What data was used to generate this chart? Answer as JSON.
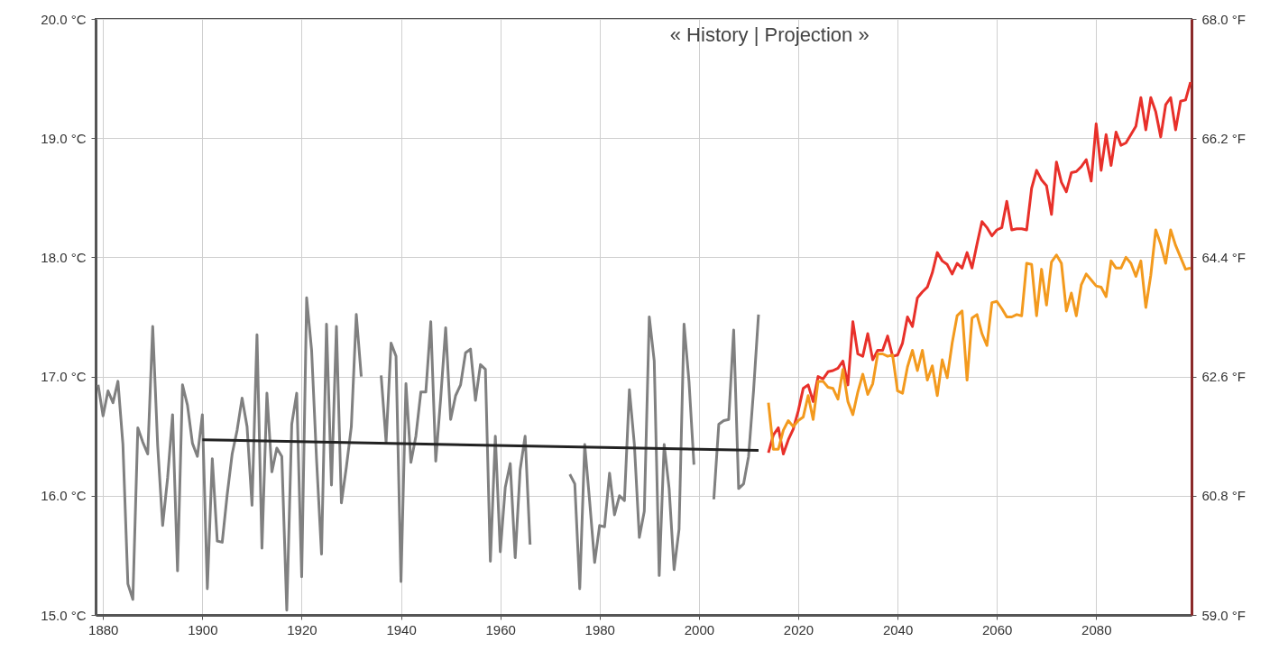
{
  "chart_data": {
    "type": "line",
    "annotations": [
      "« History | Projection »"
    ],
    "xlim": [
      1878.5,
      2099.2
    ],
    "xticks": [
      1880,
      1900,
      1920,
      1940,
      1960,
      1980,
      2000,
      2020,
      2040,
      2060,
      2080
    ],
    "ylim": [
      15,
      20
    ],
    "yticks": [
      {
        "value": 15,
        "label": "15.0 °C"
      },
      {
        "value": 16,
        "label": "16.0 °C"
      },
      {
        "value": 17,
        "label": "17.0 °C"
      },
      {
        "value": 18,
        "label": "18.0 °C"
      },
      {
        "value": 19,
        "label": "19.0 °C"
      },
      {
        "value": 20,
        "label": "20.0 °C"
      }
    ],
    "y2lim": [
      59,
      68
    ],
    "y2ticks": [
      {
        "value": 59,
        "label": "59.0 °F"
      },
      {
        "value": 60.8,
        "label": "60.8 °F"
      },
      {
        "value": 62.6,
        "label": "62.6 °F"
      },
      {
        "value": 64.4,
        "label": "64.4 °F"
      },
      {
        "value": 66.2,
        "label": "66.2 °F"
      },
      {
        "value": 68,
        "label": "68.0 °F"
      }
    ],
    "grid": true,
    "line_style": "solid",
    "series": [
      {
        "color": "#808080",
        "x": [
          1879,
          1880,
          1881,
          1882,
          1883,
          1884,
          1885,
          1886,
          1887,
          1888,
          1889,
          1890,
          1891,
          1892,
          1893,
          1894,
          1895,
          1896,
          1897,
          1898,
          1899,
          1900,
          1901,
          1902,
          1903,
          1904,
          1905,
          1906,
          1907,
          1908,
          1909,
          1910,
          1911,
          1912,
          1913,
          1914,
          1915,
          1916,
          1917,
          1918,
          1919,
          1920,
          1921,
          1922,
          1923,
          1924,
          1925,
          1926,
          1927,
          1928,
          1929,
          1930,
          1931,
          1932,
          1933,
          1934,
          1935,
          1936,
          1937,
          1938,
          1939,
          1940,
          1941,
          1942,
          1943,
          1944,
          1945,
          1946,
          1947,
          1948,
          1949,
          1950,
          1951,
          1952,
          1953,
          1954,
          1955,
          1956,
          1957,
          1958,
          1959,
          1960,
          1961,
          1962,
          1963,
          1964,
          1965,
          1966,
          1967,
          1968,
          1969,
          1970,
          1971,
          1972,
          1973,
          1974,
          1975,
          1976,
          1977,
          1978,
          1979,
          1980,
          1981,
          1982,
          1983,
          1984,
          1985,
          1986,
          1987,
          1988,
          1989,
          1990,
          1991,
          1992,
          1993,
          1994,
          1995,
          1996,
          1997,
          1998,
          1999,
          2000,
          2001,
          2002,
          2003,
          2004,
          2005,
          2006,
          2007,
          2008,
          2009,
          2010,
          2011,
          2012
        ],
        "values": [
          16.93,
          16.67,
          16.88,
          16.78,
          16.96,
          16.43,
          15.26,
          15.13,
          16.57,
          16.45,
          16.35,
          17.42,
          16.42,
          15.75,
          16.15,
          16.68,
          15.37,
          16.93,
          16.76,
          16.44,
          16.33,
          16.68,
          15.22,
          16.31,
          15.62,
          15.61,
          16.01,
          16.35,
          16.55,
          16.82,
          16.58,
          15.92,
          17.35,
          15.56,
          16.86,
          16.2,
          16.4,
          16.33,
          15.04,
          16.6,
          16.86,
          15.32,
          17.66,
          17.22,
          16.3,
          15.51,
          17.44,
          16.09,
          17.42,
          15.94,
          16.24,
          16.58,
          17.52,
          17.0,
          null,
          null,
          null,
          17.01,
          16.45,
          17.28,
          17.17,
          15.28,
          16.94,
          16.28,
          16.5,
          16.87,
          16.87,
          17.46,
          16.29,
          16.82,
          17.41,
          16.64,
          16.84,
          16.93,
          17.2,
          17.23,
          16.8,
          17.1,
          17.06,
          15.45,
          16.5,
          15.53,
          16.07,
          16.27,
          15.48,
          16.22,
          16.5,
          15.59,
          null,
          null,
          null,
          null,
          null,
          null,
          null,
          16.18,
          16.1,
          15.22,
          16.43,
          15.95,
          15.44,
          15.75,
          15.74,
          16.19,
          15.84,
          16.0,
          15.96,
          16.89,
          16.43,
          15.65,
          15.87,
          17.5,
          17.13,
          15.33,
          16.43,
          16.06,
          15.38,
          15.72,
          17.44,
          16.96,
          16.26,
          null,
          null,
          null,
          15.97,
          16.6,
          16.63,
          16.64,
          17.39,
          16.06,
          16.1,
          16.33,
          16.88,
          17.52
        ]
      },
      {
        "color": "#222222",
        "x": [
          1900,
          2012
        ],
        "values": [
          16.47,
          16.38
        ]
      },
      {
        "color": "#e8302a",
        "x": [
          2014,
          2015,
          2016,
          2017,
          2018,
          2019,
          2020,
          2021,
          2022,
          2023,
          2024,
          2025,
          2026,
          2027,
          2028,
          2029,
          2030,
          2031,
          2032,
          2033,
          2034,
          2035,
          2036,
          2037,
          2038,
          2039,
          2040,
          2041,
          2042,
          2043,
          2044,
          2045,
          2046,
          2047,
          2048,
          2049,
          2050,
          2051,
          2052,
          2053,
          2054,
          2055,
          2056,
          2057,
          2058,
          2059,
          2060,
          2061,
          2062,
          2063,
          2064,
          2065,
          2066,
          2067,
          2068,
          2069,
          2070,
          2071,
          2072,
          2073,
          2074,
          2075,
          2076,
          2077,
          2078,
          2079,
          2080,
          2081,
          2082,
          2083,
          2084,
          2085,
          2086,
          2087,
          2088,
          2089,
          2090,
          2091,
          2092,
          2093,
          2094,
          2095,
          2096,
          2097,
          2098,
          2099
        ],
        "values": [
          16.36,
          16.51,
          16.57,
          16.35,
          16.47,
          16.56,
          16.71,
          16.9,
          16.93,
          16.79,
          17.0,
          16.98,
          17.04,
          17.05,
          17.07,
          17.13,
          16.93,
          17.46,
          17.19,
          17.17,
          17.36,
          17.14,
          17.22,
          17.22,
          17.34,
          17.17,
          17.18,
          17.28,
          17.5,
          17.42,
          17.66,
          17.71,
          17.75,
          17.87,
          18.04,
          17.97,
          17.94,
          17.86,
          17.95,
          17.91,
          18.04,
          17.91,
          18.11,
          18.3,
          18.25,
          18.18,
          18.23,
          18.25,
          18.47,
          18.23,
          18.24,
          18.24,
          18.23,
          18.58,
          18.73,
          18.65,
          18.6,
          18.36,
          18.8,
          18.63,
          18.55,
          18.71,
          18.72,
          18.76,
          18.82,
          18.64,
          19.12,
          18.73,
          19.03,
          18.77,
          19.05,
          18.94,
          18.96,
          19.03,
          19.1,
          19.34,
          19.07,
          19.34,
          19.22,
          19.01,
          19.28,
          19.34,
          19.07,
          19.31,
          19.32,
          19.47
        ]
      },
      {
        "color": "#f39a1e",
        "x": [
          2014,
          2015,
          2016,
          2017,
          2018,
          2019,
          2020,
          2021,
          2022,
          2023,
          2024,
          2025,
          2026,
          2027,
          2028,
          2029,
          2030,
          2031,
          2032,
          2033,
          2034,
          2035,
          2036,
          2037,
          2038,
          2039,
          2040,
          2041,
          2042,
          2043,
          2044,
          2045,
          2046,
          2047,
          2048,
          2049,
          2050,
          2051,
          2052,
          2053,
          2054,
          2055,
          2056,
          2057,
          2058,
          2059,
          2060,
          2061,
          2062,
          2063,
          2064,
          2065,
          2066,
          2067,
          2068,
          2069,
          2070,
          2071,
          2072,
          2073,
          2074,
          2075,
          2076,
          2077,
          2078,
          2079,
          2080,
          2081,
          2082,
          2083,
          2084,
          2085,
          2086,
          2087,
          2088,
          2089,
          2090,
          2091,
          2092,
          2093,
          2094,
          2095,
          2096,
          2097,
          2098,
          2099
        ],
        "values": [
          16.78,
          16.39,
          16.39,
          16.55,
          16.63,
          16.58,
          16.63,
          16.66,
          16.84,
          16.64,
          16.96,
          16.96,
          16.91,
          16.9,
          16.81,
          17.06,
          16.79,
          16.68,
          16.87,
          17.02,
          16.85,
          16.94,
          17.19,
          17.19,
          17.17,
          17.18,
          16.88,
          16.86,
          17.08,
          17.22,
          17.05,
          17.22,
          16.97,
          17.09,
          16.84,
          17.14,
          16.99,
          17.28,
          17.51,
          17.55,
          16.97,
          17.49,
          17.52,
          17.36,
          17.26,
          17.62,
          17.63,
          17.57,
          17.5,
          17.5,
          17.52,
          17.51,
          17.95,
          17.94,
          17.51,
          17.9,
          17.6,
          17.96,
          18.02,
          17.95,
          17.55,
          17.7,
          17.51,
          17.77,
          17.86,
          17.81,
          17.76,
          17.75,
          17.67,
          17.97,
          17.91,
          17.91,
          18.0,
          17.95,
          17.84,
          17.97,
          17.58,
          17.85,
          18.23,
          18.11,
          17.95,
          18.23,
          18.1,
          18.0,
          17.9,
          17.91
        ]
      }
    ]
  }
}
